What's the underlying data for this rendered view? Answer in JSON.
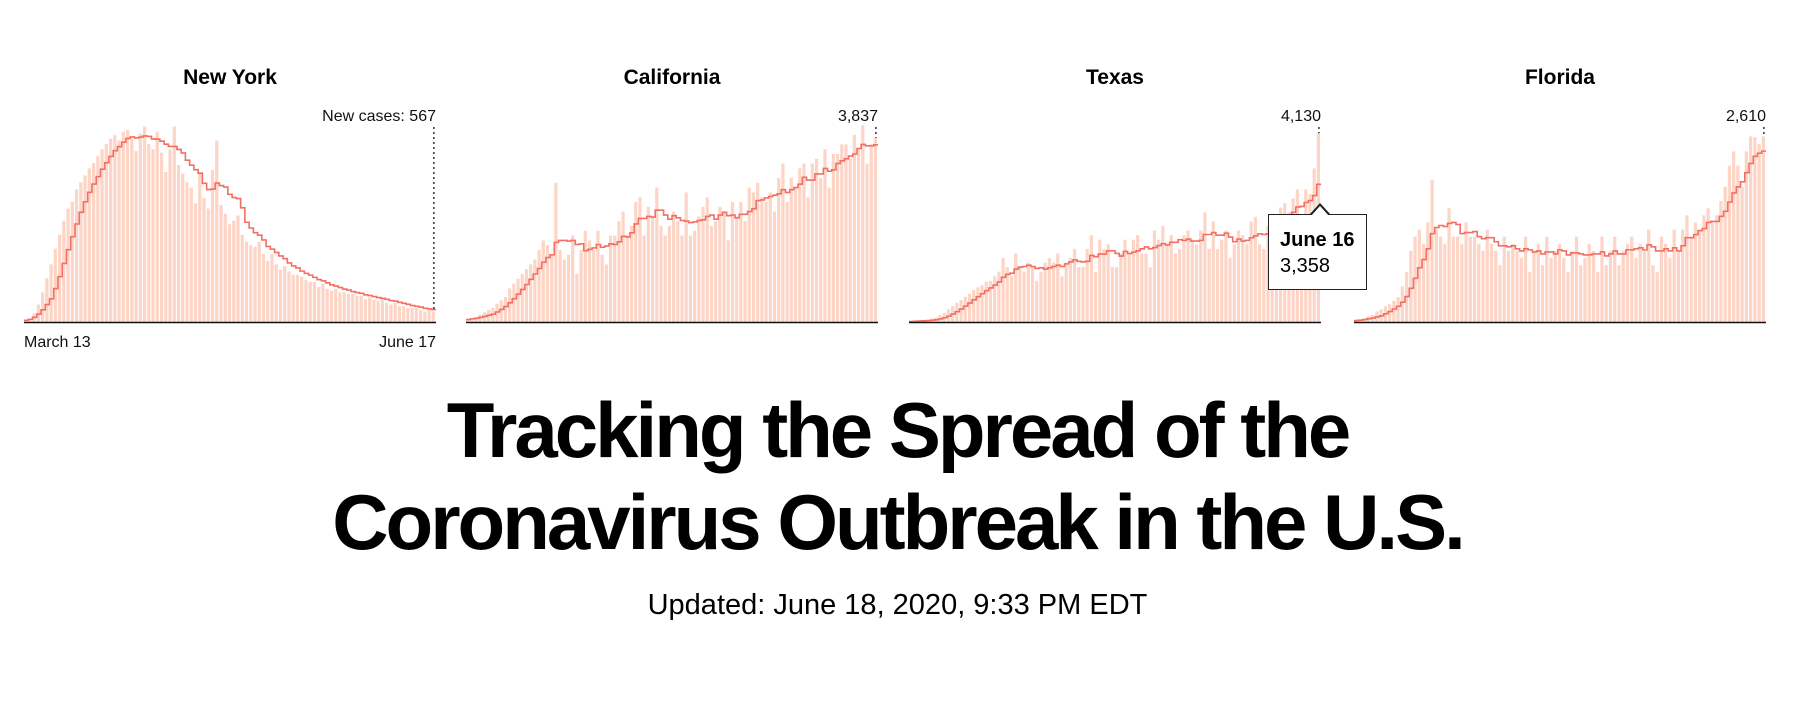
{
  "headline": {
    "line1": "Tracking the Spread of the",
    "line2": "Coronavirus Outbreak in the U.S."
  },
  "updated": "Updated: June 18, 2020, 9:33 PM EDT",
  "colors": {
    "bar": "#fdd5c7",
    "line": "#f36f63",
    "axis": "#111111"
  },
  "tooltip": {
    "date": "June 16",
    "value": "3,358"
  },
  "chart_data": [
    {
      "type": "bar",
      "title": "New York",
      "peak_label": "New cases: 567",
      "start_label": "March 13",
      "end_label": "June 17",
      "ylim": [
        0,
        11000
      ],
      "values": [
        100,
        200,
        500,
        1000,
        1700,
        2500,
        3300,
        4200,
        5000,
        5800,
        6500,
        6900,
        7600,
        8000,
        8400,
        8800,
        9100,
        9500,
        9900,
        10200,
        10500,
        10700,
        10400,
        10900,
        11000,
        10500,
        9800,
        10800,
        11200,
        10200,
        9900,
        10900,
        9700,
        8600,
        9900,
        11200,
        9000,
        8500,
        8000,
        7700,
        6800,
        8500,
        7100,
        6500,
        8700,
        10400,
        6700,
        6200,
        5600,
        5800,
        6100,
        5000,
        4600,
        4400,
        4300,
        4600,
        3900,
        3500,
        3900,
        3300,
        3000,
        3200,
        2900,
        2700,
        2700,
        2600,
        2400,
        2300,
        2300,
        2000,
        2200,
        1900,
        1800,
        1900,
        1700,
        1700,
        1600,
        1600,
        1500,
        1500,
        1300,
        1400,
        1300,
        1200,
        1300,
        1100,
        1000,
        1100,
        900,
        900,
        800,
        800,
        800,
        700,
        600,
        700,
        600
      ]
    },
    {
      "type": "bar",
      "title": "California",
      "peak_label": "3,837",
      "ylim": [
        0,
        4000
      ],
      "values": [
        50,
        80,
        100,
        150,
        200,
        250,
        300,
        380,
        450,
        520,
        700,
        800,
        900,
        1000,
        1100,
        1200,
        1300,
        1500,
        1700,
        1600,
        1400,
        2900,
        1500,
        1300,
        1400,
        1800,
        1000,
        1500,
        1900,
        1700,
        1500,
        1900,
        1400,
        1200,
        1800,
        1800,
        2100,
        2300,
        1800,
        2000,
        2500,
        2600,
        1800,
        2400,
        2200,
        2800,
        2000,
        1800,
        2000,
        2300,
        2100,
        1800,
        2700,
        1800,
        1900,
        2200,
        2400,
        2600,
        2000,
        2100,
        2400,
        2300,
        1700,
        2500,
        2200,
        2500,
        2100,
        2800,
        2700,
        2900,
        2600,
        2500,
        2700,
        2300,
        3000,
        3300,
        2500,
        3000,
        2800,
        3200,
        3300,
        2600,
        3300,
        3400,
        3000,
        3600,
        2800,
        3500,
        3500,
        3700,
        3700,
        3400,
        3900,
        3600,
        4100,
        3300,
        3700,
        3837
      ]
    },
    {
      "type": "bar",
      "title": "Texas",
      "peak_label": "4,130",
      "ylim": [
        0,
        4200
      ],
      "values": [
        10,
        20,
        30,
        40,
        50,
        80,
        100,
        150,
        200,
        280,
        350,
        420,
        480,
        550,
        620,
        700,
        760,
        800,
        880,
        900,
        1000,
        1100,
        1400,
        1200,
        1000,
        1500,
        1200,
        1100,
        1300,
        1200,
        900,
        1100,
        1300,
        1400,
        1300,
        1500,
        1000,
        1300,
        1400,
        1600,
        1200,
        1200,
        1600,
        1900,
        1100,
        1800,
        1600,
        1700,
        1200,
        1200,
        1500,
        1800,
        1500,
        1800,
        1900,
        1500,
        1500,
        1200,
        2000,
        1800,
        2100,
        1700,
        1900,
        1500,
        1600,
        1900,
        2000,
        1800,
        1700,
        2000,
        2400,
        1600,
        2200,
        1600,
        1800,
        2000,
        1400,
        1700,
        2000,
        1900,
        1700,
        2200,
        2300,
        1700,
        1600,
        2100,
        2200,
        2300,
        2500,
        2600,
        2400,
        2700,
        2900,
        2300,
        2900,
        2800,
        3358,
        4130
      ]
    },
    {
      "type": "bar",
      "title": "Florida",
      "peak_label": "2,610",
      "ylim": [
        0,
        2700
      ],
      "values": [
        20,
        30,
        50,
        80,
        100,
        150,
        180,
        220,
        250,
        300,
        350,
        500,
        700,
        1000,
        1200,
        1300,
        1100,
        1400,
        2000,
        1300,
        1200,
        1100,
        1600,
        1200,
        1200,
        1100,
        1400,
        1200,
        1200,
        1100,
        1000,
        1300,
        1100,
        1000,
        800,
        1200,
        1000,
        1100,
        1000,
        900,
        1200,
        700,
        1000,
        1100,
        800,
        1200,
        900,
        1000,
        1100,
        900,
        700,
        1000,
        1200,
        800,
        900,
        1100,
        1000,
        700,
        1200,
        800,
        1000,
        1200,
        800,
        1000,
        1100,
        1200,
        900,
        1100,
        1000,
        1300,
        800,
        700,
        1200,
        1100,
        900,
        1300,
        1000,
        1300,
        1500,
        1200,
        1400,
        1300,
        1500,
        1600,
        1400,
        1500,
        1700,
        1900,
        2200,
        2400,
        2200,
        1900,
        2400,
        2610,
        2600,
        2500,
        2610
      ]
    }
  ]
}
